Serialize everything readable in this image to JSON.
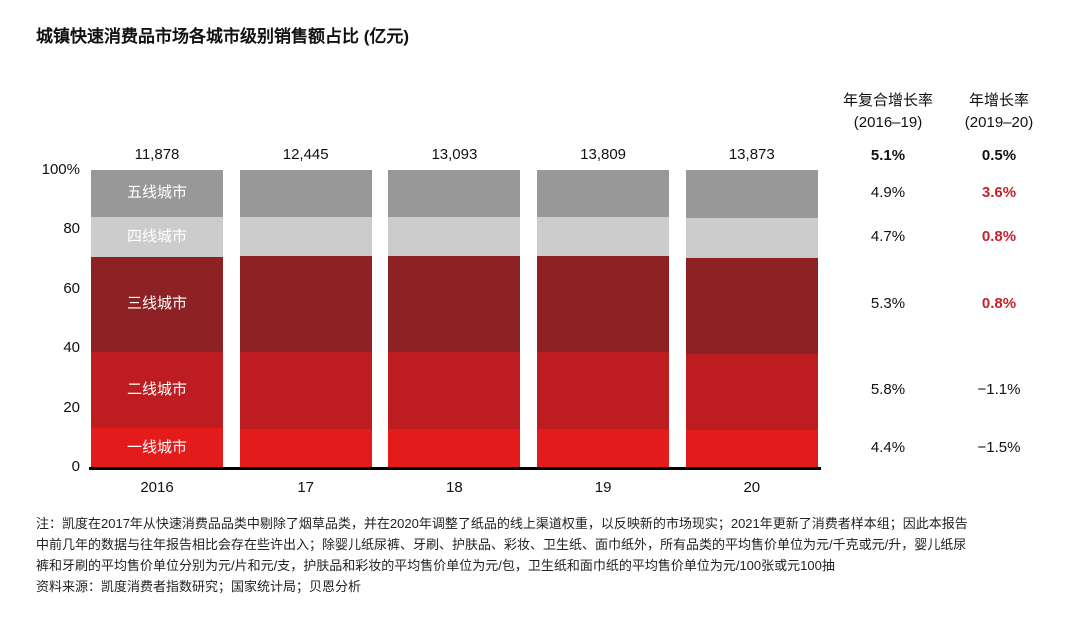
{
  "title": "城镇快速消费品市场各城市级别销售额占比 (亿元)",
  "columns": {
    "cagr": {
      "label": "年复合增长率",
      "range": "(2016–19)",
      "total_value": "5.1%"
    },
    "yoy": {
      "label": "年增长率",
      "range": "(2019–20)",
      "total_value": "0.5%"
    }
  },
  "chart_data": {
    "type": "bar",
    "stacked": true,
    "unit": "亿元",
    "title": "城镇快速消费品市场各城市级别销售额占比 (亿元)",
    "categories": [
      "2016",
      "17",
      "18",
      "19",
      "20"
    ],
    "totals": [
      "11,878",
      "12,445",
      "13,093",
      "13,809",
      "13,873"
    ],
    "y_axis": {
      "ticks": [
        "100%",
        "80",
        "60",
        "40",
        "20",
        "0"
      ],
      "tick_values": [
        100,
        80,
        60,
        40,
        20,
        0
      ],
      "range": [
        0,
        100
      ],
      "grid": false
    },
    "series_note": "values are percent share of total, listed bottom-to-top of the stack",
    "series": [
      {
        "name": "一线城市",
        "color": "#e31b1b",
        "values": [
          13.0,
          12.9,
          12.9,
          12.8,
          12.5
        ],
        "cagr_2016_19": "4.4%",
        "yoy_2019_20": "−1.5%",
        "yoy_highlight": false
      },
      {
        "name": "二线城市",
        "color": "#bd1c20",
        "values": [
          25.8,
          25.9,
          25.8,
          25.9,
          25.7
        ],
        "cagr_2016_19": "5.8%",
        "yoy_2019_20": "−1.1%",
        "yoy_highlight": false
      },
      {
        "name": "三线城市",
        "color": "#8e2124",
        "values": [
          32.0,
          32.1,
          32.2,
          32.2,
          32.2
        ],
        "cagr_2016_19": "5.3%",
        "yoy_2019_20": "0.8%",
        "yoy_highlight": true
      },
      {
        "name": "四线城市",
        "color": "#cccccc",
        "values": [
          13.4,
          13.3,
          13.3,
          13.3,
          13.3
        ],
        "cagr_2016_19": "4.7%",
        "yoy_2019_20": "0.8%",
        "yoy_highlight": true
      },
      {
        "name": "五线城市",
        "color": "#989898",
        "values": [
          15.8,
          15.8,
          15.8,
          15.8,
          16.3
        ],
        "cagr_2016_19": "4.9%",
        "yoy_2019_20": "3.6%",
        "yoy_highlight": true
      }
    ],
    "legend_position": "inside-first-bar"
  },
  "colors": {
    "highlight_red": "#c8202b",
    "text_black": "#111111",
    "axis_black": "#000000"
  },
  "notes": {
    "lines": [
      "注：凯度在2017年从快速消费品品类中剔除了烟草品类，并在2020年调整了纸品的线上渠道权重，以反映新的市场现实；2021年更新了消费者样本组；因此本报告",
      "中前几年的数据与往年报告相比会存在些许出入；除婴儿纸尿裤、牙刷、护肤品、彩妆、卫生纸、面巾纸外，所有品类的平均售价单位为元/千克或元/升，婴儿纸尿",
      "裤和牙刷的平均售价单位分别为元/片和元/支，护肤品和彩妆的平均售价单位为元/包，卫生纸和面巾纸的平均售价单位为元/100张或元100抽",
      "资料来源：凯度消费者指数研究；国家统计局；贝恩分析"
    ]
  }
}
